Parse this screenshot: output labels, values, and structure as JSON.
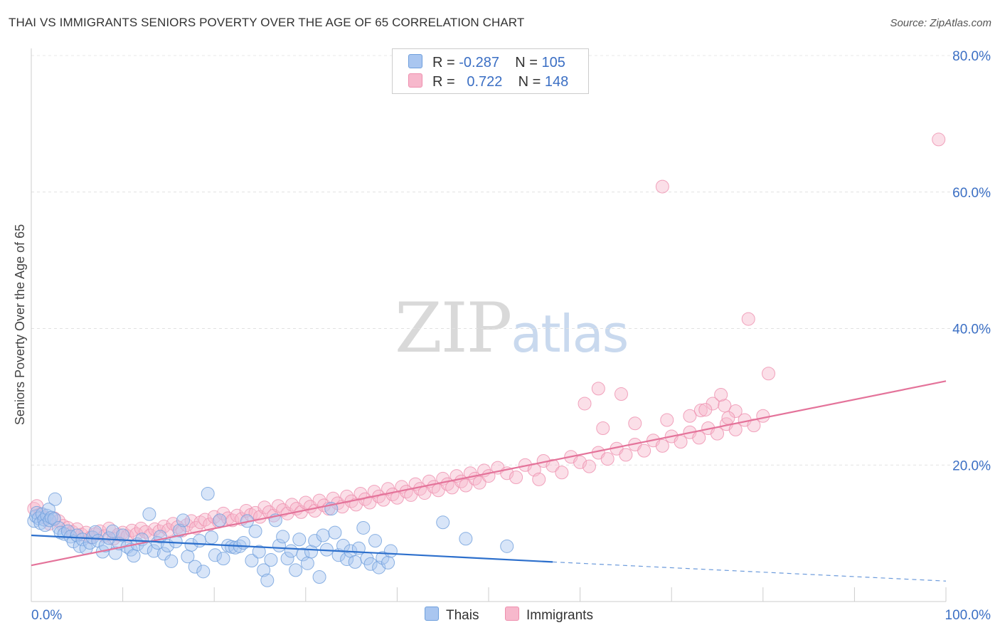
{
  "title": "THAI VS IMMIGRANTS SENIORS POVERTY OVER THE AGE OF 65 CORRELATION CHART",
  "source": "Source: ZipAtlas.com",
  "watermark": {
    "zip": "ZIP",
    "atlas": "atlas"
  },
  "legend": {
    "rows": [
      {
        "r_label": "R =",
        "r_value": "-0.287",
        "n_label": "N =",
        "n_value": "105"
      },
      {
        "r_label": "R =",
        "r_value": "0.722",
        "n_label": "N =",
        "n_value": "148"
      }
    ],
    "bottom": [
      "Thais",
      "Immigrants"
    ]
  },
  "colors": {
    "thais_fill": "#a9c6f0",
    "thais_stroke": "#6f9fdc",
    "thais_line": "#2c6fcc",
    "immigrants_fill": "#f7b8cc",
    "immigrants_stroke": "#ee8fae",
    "immigrants_line": "#e4739a",
    "axis_text": "#3b6fc4"
  },
  "chart_data": {
    "type": "scatter",
    "title": "THAI VS IMMIGRANTS SENIORS POVERTY OVER THE AGE OF 65 CORRELATION CHART",
    "xlabel": "",
    "ylabel": "Seniors Poverty Over the Age of 65",
    "xlim": [
      0,
      100
    ],
    "ylim": [
      0,
      80
    ],
    "x_tick_labels": [
      "0.0%",
      "100.0%"
    ],
    "y_ticks": [
      20,
      40,
      60,
      80
    ],
    "y_tick_labels": [
      "20.0%",
      "40.0%",
      "60.0%",
      "80.0%"
    ],
    "grid": true,
    "legend_position": "top-center",
    "series": [
      {
        "name": "Thais",
        "r": -0.287,
        "n": 105,
        "trend": {
          "x": [
            0,
            57
          ],
          "y": [
            9.7,
            5.8
          ]
        },
        "trend_extension": {
          "x": [
            57,
            100
          ],
          "y": [
            5.8,
            3.0
          ]
        },
        "points": [
          [
            0.3,
            11.8
          ],
          [
            0.5,
            12.5
          ],
          [
            0.6,
            13.0
          ],
          [
            0.8,
            12.2
          ],
          [
            1.0,
            11.5
          ],
          [
            1.2,
            12.8
          ],
          [
            1.4,
            12.0
          ],
          [
            1.5,
            11.2
          ],
          [
            1.7,
            12.6
          ],
          [
            1.9,
            13.5
          ],
          [
            2.0,
            11.9
          ],
          [
            2.2,
            12.3
          ],
          [
            2.5,
            12.1
          ],
          [
            2.6,
            15.0
          ],
          [
            3.0,
            10.8
          ],
          [
            3.2,
            10.1
          ],
          [
            3.6,
            9.9
          ],
          [
            4.0,
            10.3
          ],
          [
            4.3,
            9.5
          ],
          [
            4.6,
            8.8
          ],
          [
            5.0,
            9.7
          ],
          [
            5.3,
            8.1
          ],
          [
            5.6,
            9.1
          ],
          [
            6.0,
            7.8
          ],
          [
            6.4,
            8.6
          ],
          [
            6.7,
            9.4
          ],
          [
            7.0,
            10.2
          ],
          [
            7.3,
            8.9
          ],
          [
            7.8,
            7.3
          ],
          [
            8.1,
            8.2
          ],
          [
            8.5,
            9.3
          ],
          [
            8.9,
            10.3
          ],
          [
            9.2,
            7.1
          ],
          [
            9.6,
            8.5
          ],
          [
            10.0,
            9.7
          ],
          [
            10.5,
            8.0
          ],
          [
            10.9,
            7.6
          ],
          [
            11.2,
            6.7
          ],
          [
            11.6,
            8.4
          ],
          [
            12.1,
            9.1
          ],
          [
            12.5,
            7.9
          ],
          [
            12.9,
            12.8
          ],
          [
            13.4,
            7.4
          ],
          [
            13.8,
            8.6
          ],
          [
            14.1,
            9.5
          ],
          [
            14.5,
            7.0
          ],
          [
            14.9,
            8.2
          ],
          [
            15.3,
            5.9
          ],
          [
            15.8,
            8.8
          ],
          [
            16.2,
            10.4
          ],
          [
            16.6,
            11.9
          ],
          [
            17.1,
            6.6
          ],
          [
            17.5,
            8.3
          ],
          [
            17.9,
            5.1
          ],
          [
            18.4,
            8.9
          ],
          [
            18.8,
            4.4
          ],
          [
            19.3,
            15.8
          ],
          [
            19.7,
            9.4
          ],
          [
            20.1,
            6.8
          ],
          [
            20.6,
            11.9
          ],
          [
            21.0,
            6.3
          ],
          [
            21.5,
            8.2
          ],
          [
            21.9,
            8.0
          ],
          [
            22.3,
            7.9
          ],
          [
            22.8,
            8.1
          ],
          [
            23.2,
            8.6
          ],
          [
            23.6,
            11.8
          ],
          [
            24.1,
            6.0
          ],
          [
            24.5,
            10.3
          ],
          [
            24.9,
            7.3
          ],
          [
            25.4,
            4.6
          ],
          [
            25.8,
            3.1
          ],
          [
            26.2,
            6.1
          ],
          [
            26.7,
            11.9
          ],
          [
            27.1,
            8.2
          ],
          [
            27.5,
            9.5
          ],
          [
            28.0,
            6.3
          ],
          [
            28.4,
            7.4
          ],
          [
            28.9,
            4.6
          ],
          [
            29.3,
            9.1
          ],
          [
            29.7,
            6.9
          ],
          [
            30.2,
            5.6
          ],
          [
            30.6,
            7.3
          ],
          [
            31.0,
            8.9
          ],
          [
            31.5,
            3.6
          ],
          [
            31.9,
            9.7
          ],
          [
            32.3,
            7.6
          ],
          [
            32.8,
            13.6
          ],
          [
            33.2,
            10.1
          ],
          [
            33.6,
            6.8
          ],
          [
            34.1,
            8.2
          ],
          [
            34.5,
            6.2
          ],
          [
            34.9,
            7.4
          ],
          [
            35.4,
            5.8
          ],
          [
            35.8,
            7.8
          ],
          [
            36.3,
            10.8
          ],
          [
            36.7,
            6.3
          ],
          [
            37.1,
            5.5
          ],
          [
            37.6,
            8.9
          ],
          [
            38.0,
            5.0
          ],
          [
            38.4,
            6.4
          ],
          [
            39.0,
            5.7
          ],
          [
            39.3,
            7.4
          ],
          [
            45.0,
            11.6
          ],
          [
            47.5,
            9.2
          ],
          [
            52.0,
            8.1
          ]
        ]
      },
      {
        "name": "Immigrants",
        "r": 0.722,
        "n": 148,
        "trend": {
          "x": [
            0,
            100
          ],
          "y": [
            5.3,
            32.3
          ]
        },
        "points": [
          [
            0.3,
            13.6
          ],
          [
            0.6,
            14.0
          ],
          [
            1.0,
            12.8
          ],
          [
            1.5,
            12.3
          ],
          [
            2.0,
            11.4
          ],
          [
            2.5,
            12.2
          ],
          [
            3.0,
            11.8
          ],
          [
            3.5,
            11.1
          ],
          [
            4.0,
            10.8
          ],
          [
            4.5,
            10.2
          ],
          [
            5.0,
            10.6
          ],
          [
            5.5,
            9.8
          ],
          [
            6.0,
            10.1
          ],
          [
            6.5,
            9.4
          ],
          [
            7.0,
            9.9
          ],
          [
            7.5,
            10.3
          ],
          [
            8.0,
            9.6
          ],
          [
            8.5,
            10.7
          ],
          [
            9.0,
            9.2
          ],
          [
            9.5,
            9.8
          ],
          [
            10.0,
            10.1
          ],
          [
            10.5,
            9.6
          ],
          [
            11.0,
            10.4
          ],
          [
            11.5,
            9.9
          ],
          [
            12.0,
            10.7
          ],
          [
            12.5,
            10.2
          ],
          [
            13.0,
            9.7
          ],
          [
            13.5,
            10.6
          ],
          [
            14.0,
            10.3
          ],
          [
            14.5,
            11.0
          ],
          [
            15.0,
            10.5
          ],
          [
            15.5,
            11.4
          ],
          [
            16.0,
            10.9
          ],
          [
            16.5,
            10.4
          ],
          [
            17.0,
            11.2
          ],
          [
            17.5,
            11.8
          ],
          [
            18.0,
            10.8
          ],
          [
            18.5,
            11.6
          ],
          [
            19.0,
            12.0
          ],
          [
            19.5,
            11.3
          ],
          [
            20.0,
            12.4
          ],
          [
            20.5,
            11.7
          ],
          [
            21.0,
            12.9
          ],
          [
            21.5,
            12.2
          ],
          [
            22.0,
            11.9
          ],
          [
            22.5,
            12.6
          ],
          [
            23.0,
            12.1
          ],
          [
            23.5,
            13.3
          ],
          [
            24.0,
            12.7
          ],
          [
            24.5,
            13.0
          ],
          [
            25.0,
            12.4
          ],
          [
            25.5,
            13.8
          ],
          [
            26.0,
            13.1
          ],
          [
            26.5,
            12.6
          ],
          [
            27.0,
            14.0
          ],
          [
            27.5,
            13.4
          ],
          [
            28.0,
            12.9
          ],
          [
            28.5,
            14.2
          ],
          [
            29.0,
            13.6
          ],
          [
            29.5,
            13.1
          ],
          [
            30.0,
            14.5
          ],
          [
            30.5,
            13.9
          ],
          [
            31.0,
            13.3
          ],
          [
            31.5,
            14.8
          ],
          [
            32.0,
            14.1
          ],
          [
            32.5,
            13.6
          ],
          [
            33.0,
            15.1
          ],
          [
            33.5,
            14.4
          ],
          [
            34.0,
            13.9
          ],
          [
            34.5,
            15.4
          ],
          [
            35.0,
            14.7
          ],
          [
            35.5,
            14.2
          ],
          [
            36.0,
            15.8
          ],
          [
            36.5,
            15.0
          ],
          [
            37.0,
            14.5
          ],
          [
            37.5,
            16.1
          ],
          [
            38.0,
            15.4
          ],
          [
            38.5,
            14.9
          ],
          [
            39.0,
            16.5
          ],
          [
            39.5,
            15.7
          ],
          [
            40.0,
            15.2
          ],
          [
            40.5,
            16.8
          ],
          [
            41.0,
            16.1
          ],
          [
            41.5,
            15.6
          ],
          [
            42.0,
            17.2
          ],
          [
            42.5,
            16.5
          ],
          [
            43.0,
            15.9
          ],
          [
            43.5,
            17.6
          ],
          [
            44.0,
            16.8
          ],
          [
            44.5,
            16.3
          ],
          [
            45.0,
            18.0
          ],
          [
            45.5,
            17.2
          ],
          [
            46.0,
            16.7
          ],
          [
            46.5,
            18.4
          ],
          [
            47.0,
            17.6
          ],
          [
            47.5,
            17.0
          ],
          [
            48.0,
            18.8
          ],
          [
            48.5,
            18.0
          ],
          [
            49.0,
            17.4
          ],
          [
            49.5,
            19.2
          ],
          [
            50.0,
            18.4
          ],
          [
            51.0,
            19.6
          ],
          [
            52.0,
            18.8
          ],
          [
            53.0,
            18.2
          ],
          [
            54.0,
            20.0
          ],
          [
            55.0,
            19.3
          ],
          [
            55.5,
            17.9
          ],
          [
            56.0,
            20.6
          ],
          [
            57.0,
            19.9
          ],
          [
            58.0,
            18.9
          ],
          [
            59.0,
            21.2
          ],
          [
            60.0,
            20.4
          ],
          [
            61.0,
            19.8
          ],
          [
            62.0,
            21.8
          ],
          [
            63.0,
            20.9
          ],
          [
            64.0,
            22.4
          ],
          [
            65.0,
            21.5
          ],
          [
            66.0,
            23.0
          ],
          [
            67.0,
            22.1
          ],
          [
            68.0,
            23.6
          ],
          [
            69.0,
            22.8
          ],
          [
            70.0,
            24.2
          ],
          [
            71.0,
            23.4
          ],
          [
            72.0,
            24.8
          ],
          [
            73.0,
            24.0
          ],
          [
            74.0,
            25.4
          ],
          [
            75.0,
            24.6
          ],
          [
            76.0,
            26.0
          ],
          [
            77.0,
            25.2
          ],
          [
            78.0,
            26.6
          ],
          [
            79.0,
            25.8
          ],
          [
            80.0,
            27.2
          ],
          [
            60.5,
            29.0
          ],
          [
            62.0,
            31.2
          ],
          [
            62.5,
            25.4
          ],
          [
            64.5,
            30.4
          ],
          [
            66.0,
            26.1
          ],
          [
            69.5,
            26.6
          ],
          [
            72.0,
            27.2
          ],
          [
            73.2,
            28.0
          ],
          [
            74.5,
            29.0
          ],
          [
            75.8,
            28.7
          ],
          [
            77.0,
            27.9
          ],
          [
            78.4,
            41.4
          ],
          [
            80.6,
            33.4
          ],
          [
            69.0,
            60.8
          ],
          [
            99.2,
            67.7
          ],
          [
            73.7,
            28.1
          ],
          [
            76.2,
            26.9
          ],
          [
            75.4,
            30.3
          ]
        ]
      }
    ]
  }
}
